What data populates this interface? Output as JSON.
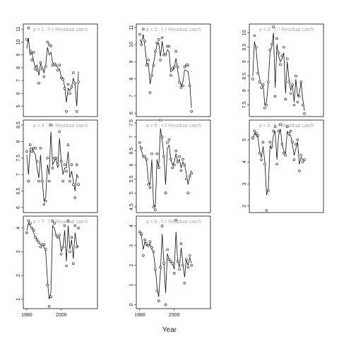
{
  "chart_data": {
    "type": "line",
    "xlabel": "Year",
    "ylabel": "",
    "x_ticks": [
      "1980",
      "2000"
    ],
    "x_range": [
      1978,
      2021
    ],
    "panels": [
      {
        "strip": "a = 1 : f = Residual catch",
        "ylim": [
          4.2,
          11.4
        ],
        "yticks": [
          5,
          6,
          7,
          8,
          9,
          10,
          11
        ],
        "points": [
          10.2,
          11.1,
          9.3,
          8.6,
          9.2,
          7.9,
          7.8,
          6.8,
          8.4,
          7.9,
          7.3,
          8.1,
          10.0,
          9.8,
          9.7,
          8.2,
          8.3,
          8.2,
          7.8,
          8.2,
          7.2,
          7.1,
          6.4,
          4.6,
          6.7,
          6.0,
          6.5,
          7.6,
          6.8,
          4.6,
          6.9
        ],
        "fit": [
          9.5,
          10.3,
          9.0,
          9.2,
          8.5,
          8.0,
          8.2,
          7.4,
          8.3,
          8.0,
          7.6,
          8.2,
          9.6,
          9.0,
          9.2,
          8.4,
          8.2,
          8.2,
          8.0,
          7.9,
          7.3,
          7.2,
          6.5,
          5.3,
          6.4,
          6.2,
          6.5,
          7.2,
          6.6,
          5.0,
          7.7
        ]
      },
      {
        "strip": "a = 4 : f = Residual catch",
        "ylim": [
          5.85,
          8.65
        ],
        "yticks": [
          6.0,
          6.5,
          7.0,
          7.5,
          8.0,
          8.5
        ],
        "points": [
          7.7,
          6.8,
          7.9,
          7.7,
          7.8,
          7.8,
          7.4,
          6.8,
          7.8,
          6.8,
          6.1,
          6.2,
          7.5,
          6.8,
          8.5,
          7.2,
          7.5,
          7.5,
          7.3,
          8.3,
          7.4,
          6.8,
          7.3,
          7.1,
          7.9,
          6.8,
          7.3,
          6.7,
          6.3,
          7.3,
          6.7
        ],
        "fit": [
          7.6,
          7.0,
          7.8,
          7.8,
          7.7,
          7.6,
          7.2,
          6.9,
          7.6,
          6.8,
          6.2,
          6.3,
          7.3,
          7.0,
          8.3,
          7.3,
          7.4,
          7.5,
          7.2,
          8.1,
          7.4,
          7.0,
          7.2,
          7.2,
          7.7,
          6.9,
          7.1,
          6.8,
          6.5,
          7.0,
          6.9
        ]
      },
      {
        "strip": "a = 7 : f = Residual catch",
        "ylim": [
          0.6,
          4.5
        ],
        "yticks": [
          1,
          2,
          3,
          4
        ],
        "points": [
          3.8,
          4.3,
          4.2,
          4.0,
          3.9,
          3.6,
          3.5,
          3.4,
          3.2,
          3.3,
          3.3,
          3.1,
          1.6,
          0.7,
          1.1,
          4.3,
          4.2,
          3.7,
          3.6,
          3.7,
          2.9,
          3.2,
          4.1,
          2.4,
          4.3,
          3.0,
          3.6,
          2.5,
          4.1,
          3.2,
          4.0
        ],
        "fit": [
          3.9,
          4.2,
          4.1,
          4.0,
          3.8,
          3.6,
          3.5,
          3.4,
          3.3,
          3.3,
          3.2,
          3.0,
          1.8,
          1.0,
          1.3,
          4.1,
          4.0,
          3.7,
          3.6,
          3.6,
          3.0,
          3.2,
          3.9,
          2.6,
          4.1,
          3.1,
          3.5,
          2.7,
          3.8,
          3.3,
          3.2
        ]
      },
      {
        "strip": "a = 2 : f = Residual catch",
        "ylim": [
          5.8,
          11.2
        ],
        "yticks": [
          6,
          7,
          8,
          9,
          10,
          11
        ],
        "points": [
          10.6,
          10.0,
          10.9,
          10.2,
          8.8,
          9.1,
          7.2,
          8.2,
          8.8,
          9.6,
          10.1,
          10.3,
          9.1,
          10.4,
          9.4,
          9.4,
          9.9,
          9.9,
          8.2,
          8.6,
          8.7,
          9.6,
          8.7,
          7.8,
          7.5,
          7.6,
          8.7,
          8.8,
          8.8,
          7.6,
          6.1
        ],
        "fit": [
          10.3,
          10.1,
          10.6,
          9.9,
          8.9,
          8.9,
          7.7,
          8.3,
          8.9,
          9.5,
          10.0,
          10.1,
          9.3,
          10.2,
          9.5,
          9.4,
          9.7,
          9.6,
          8.4,
          8.5,
          8.6,
          9.2,
          8.5,
          7.9,
          7.6,
          7.8,
          8.5,
          8.5,
          8.4,
          7.7,
          6.3
        ]
      },
      {
        "strip": "a = 5 : f = Residual catch",
        "ylim": [
          4.3,
          7.6
        ],
        "yticks": [
          4.5,
          5.0,
          5.5,
          6.0,
          6.5,
          7.0,
          7.5
        ],
        "points": [
          6.8,
          6.6,
          6.3,
          6.3,
          6.2,
          5.3,
          5.2,
          6.4,
          4.5,
          4.4,
          6.4,
          5.9,
          7.6,
          7.0,
          6.3,
          5.0,
          6.8,
          6.9,
          6.2,
          5.9,
          6.0,
          6.5,
          6.1,
          6.3,
          5.8,
          6.2,
          6.0,
          5.5,
          5.0,
          5.6,
          5.7
        ],
        "fit": [
          6.7,
          6.5,
          6.3,
          6.3,
          6.1,
          5.4,
          5.3,
          6.2,
          4.6,
          4.5,
          6.2,
          5.9,
          7.3,
          6.9,
          6.3,
          5.3,
          6.6,
          6.7,
          6.2,
          6.0,
          6.1,
          6.4,
          6.1,
          6.2,
          5.9,
          6.1,
          6.0,
          5.7,
          5.3,
          5.6,
          5.8
        ]
      },
      {
        "strip": "a = 8 : f = Residual catch",
        "ylim": [
          -0.2,
          4.5
        ],
        "yticks": [
          0,
          1,
          2,
          3,
          4
        ],
        "points": [
          3.7,
          3.6,
          2.5,
          3.3,
          3.1,
          3.0,
          3.2,
          2.9,
          2.7,
          1.8,
          0.7,
          0.2,
          1.9,
          4.0,
          2.1,
          0.0,
          2.8,
          2.3,
          2.2,
          2.1,
          1.6,
          4.3,
          2.2,
          1.8,
          3.1,
          2.0,
          1.1,
          2.3,
          1.9,
          2.5,
          2.0
        ],
        "fit": [
          3.6,
          3.5,
          2.8,
          3.2,
          3.0,
          3.0,
          3.1,
          2.8,
          2.6,
          1.9,
          0.9,
          0.4,
          1.7,
          3.6,
          2.1,
          0.6,
          2.6,
          2.3,
          2.2,
          2.1,
          1.8,
          3.7,
          2.2,
          1.9,
          2.9,
          2.1,
          1.4,
          2.3,
          2.0,
          2.4,
          2.1
        ]
      },
      {
        "strip": "a = 3 : f = Residual catch",
        "ylim": [
          7.1,
          10.3
        ],
        "yticks": [
          7.5,
          8.0,
          8.5,
          9.0,
          9.5,
          10.0
        ],
        "points": [
          8.4,
          9.9,
          9.5,
          8.6,
          8.3,
          8.1,
          8.2,
          7.4,
          7.5,
          8.3,
          9.4,
          9.6,
          10.2,
          7.8,
          9.8,
          9.3,
          8.9,
          9.2,
          9.5,
          7.7,
          9.1,
          8.3,
          7.9,
          8.2,
          7.5,
          8.5,
          7.6,
          7.8,
          8.3,
          7.5,
          7.2
        ],
        "fit": [
          8.5,
          9.7,
          9.4,
          8.7,
          8.4,
          8.2,
          8.2,
          7.5,
          7.6,
          8.3,
          9.3,
          9.5,
          10.0,
          8.1,
          9.6,
          9.2,
          9.0,
          9.1,
          9.3,
          7.9,
          9.0,
          8.4,
          8.0,
          8.2,
          7.6,
          8.4,
          7.8,
          7.9,
          8.3,
          7.7,
          7.3
        ]
      },
      {
        "strip": "a = 6 : f = Residual catch",
        "ylim": [
          1.7,
          5.9
        ],
        "yticks": [
          2,
          3,
          4,
          5
        ],
        "points": [
          5.1,
          5.4,
          5.3,
          5.2,
          4.4,
          4.1,
          4.9,
          3.9,
          1.8,
          2.7,
          4.9,
          4.7,
          5.4,
          5.6,
          3.9,
          5.4,
          5.7,
          4.8,
          4.4,
          4.3,
          5.6,
          5.3,
          5.4,
          4.9,
          4.1,
          4.8,
          5.0,
          3.6,
          4.3,
          4.0,
          4.1
        ],
        "fit": [
          5.0,
          5.3,
          5.2,
          5.1,
          4.5,
          4.2,
          4.7,
          4.0,
          2.5,
          2.8,
          4.7,
          4.6,
          5.2,
          5.4,
          4.1,
          5.2,
          5.5,
          4.8,
          4.5,
          4.4,
          5.4,
          5.2,
          5.2,
          4.8,
          4.3,
          4.6,
          4.9,
          3.9,
          4.2,
          4.1,
          4.1
        ]
      }
    ]
  }
}
